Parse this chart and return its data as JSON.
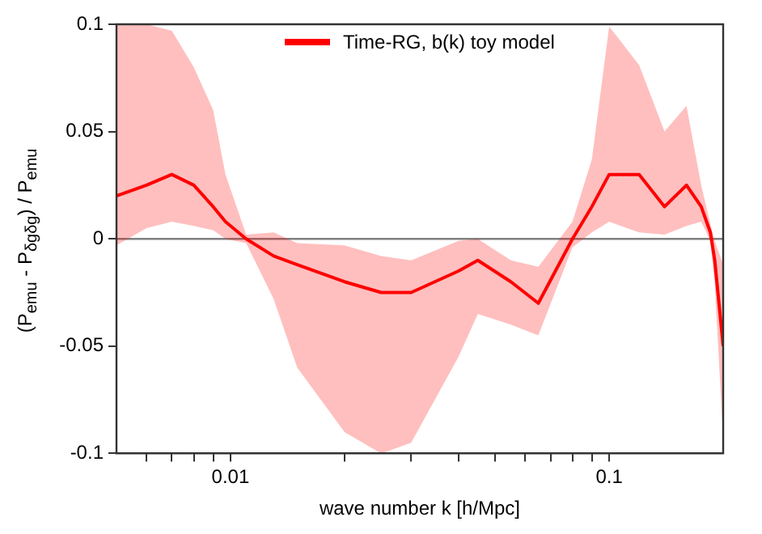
{
  "chart_data": {
    "type": "line",
    "xlabel": "wave number k [h/Mpc]",
    "ylabel": "(P$_{emu}$ - P$_{δgδg}$) / P$_{emu}$",
    "x": [
      0.005,
      0.006,
      0.007,
      0.008,
      0.009,
      0.0097,
      0.011,
      0.013,
      0.015,
      0.02,
      0.025,
      0.03,
      0.04,
      0.045,
      0.055,
      0.065,
      0.08,
      0.09,
      0.1,
      0.12,
      0.14,
      0.16,
      0.175,
      0.185,
      0.19,
      0.2
    ],
    "series": [
      {
        "name": "Time-RG, b(k) toy model",
        "color": "#ff0000",
        "values": [
          0.02,
          0.025,
          0.03,
          0.025,
          0.015,
          0.008,
          0,
          -0.008,
          -0.012,
          -0.02,
          -0.025,
          -0.025,
          -0.015,
          -0.01,
          -0.02,
          -0.03,
          0,
          0.015,
          0.03,
          0.03,
          0.015,
          0.025,
          0.015,
          0.003,
          -0.01,
          -0.05
        ],
        "upper": [
          0.1,
          0.1,
          0.097,
          0.08,
          0.06,
          0.03,
          0.002,
          0.003,
          -0.002,
          -0.003,
          -0.008,
          -0.01,
          -0.001,
          0,
          -0.01,
          -0.013,
          0.008,
          0.037,
          0.099,
          0.081,
          0.05,
          0.062,
          0.025,
          0.007,
          -0.001,
          -0.012
        ],
        "lower": [
          -0.003,
          0.005,
          0.008,
          0.006,
          0.004,
          0,
          -0.002,
          -0.028,
          -0.06,
          -0.09,
          -0.1,
          -0.095,
          -0.055,
          -0.035,
          -0.04,
          -0.045,
          -0.004,
          0.003,
          0.008,
          0.003,
          0.002,
          0.006,
          0.008,
          -0.001,
          -0.021,
          -0.093
        ]
      }
    ],
    "log": "x",
    "xlim": [
      0.005,
      0.2
    ],
    "xticks": [
      {
        "value": 0.006,
        "label": null
      },
      {
        "value": 0.007,
        "label": null
      },
      {
        "value": 0.008,
        "label": null
      },
      {
        "value": 0.009,
        "label": null
      },
      0.01,
      {
        "value": 0.02,
        "label": null
      },
      {
        "value": 0.03,
        "label": null
      },
      {
        "value": 0.04,
        "label": null
      },
      {
        "value": 0.05,
        "label": null
      },
      {
        "value": 0.06,
        "label": null
      },
      {
        "value": 0.07,
        "label": null
      },
      {
        "value": 0.08,
        "label": null
      },
      {
        "value": 0.09,
        "label": null
      },
      0.1
    ],
    "ylim": [
      -0.1,
      0.1
    ],
    "yticks": [
      -0.1,
      -0.05,
      0,
      0.05,
      0.1
    ],
    "ref_lines": [
      {
        "axis": "y",
        "value": 0,
        "color": "#808080"
      }
    ],
    "grid": false,
    "legend": "top",
    "line_style": "solid",
    "marker": "none"
  }
}
